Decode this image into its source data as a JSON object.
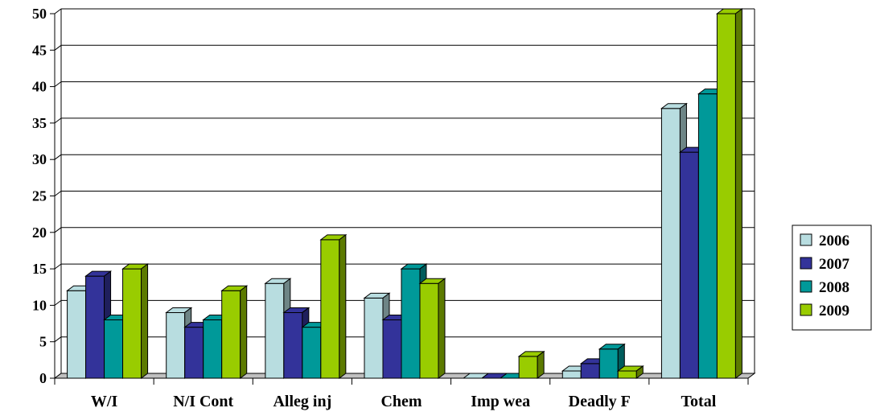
{
  "chart_data": {
    "type": "bar",
    "categories": [
      "W/I",
      "N/I Cont",
      "Alleg inj",
      "Chem",
      "Imp wea",
      "Deadly F",
      "Total"
    ],
    "series": [
      {
        "name": "2006",
        "color": "#b8dde0",
        "values": [
          12,
          9,
          13,
          11,
          0,
          1,
          37
        ]
      },
      {
        "name": "2007",
        "color": "#33339a",
        "values": [
          14,
          7,
          9,
          8,
          0,
          2,
          31
        ]
      },
      {
        "name": "2008",
        "color": "#009999",
        "values": [
          8,
          8,
          7,
          15,
          0,
          4,
          39
        ]
      },
      {
        "name": "2009",
        "color": "#99cc00",
        "values": [
          15,
          12,
          19,
          13,
          3,
          1,
          50
        ]
      }
    ],
    "ylim": [
      0,
      50
    ],
    "yticks": [
      0,
      5,
      10,
      15,
      20,
      25,
      30,
      35,
      40,
      45,
      50
    ],
    "grid": true,
    "legend": "right",
    "title": "",
    "xlabel": "",
    "ylabel": ""
  }
}
